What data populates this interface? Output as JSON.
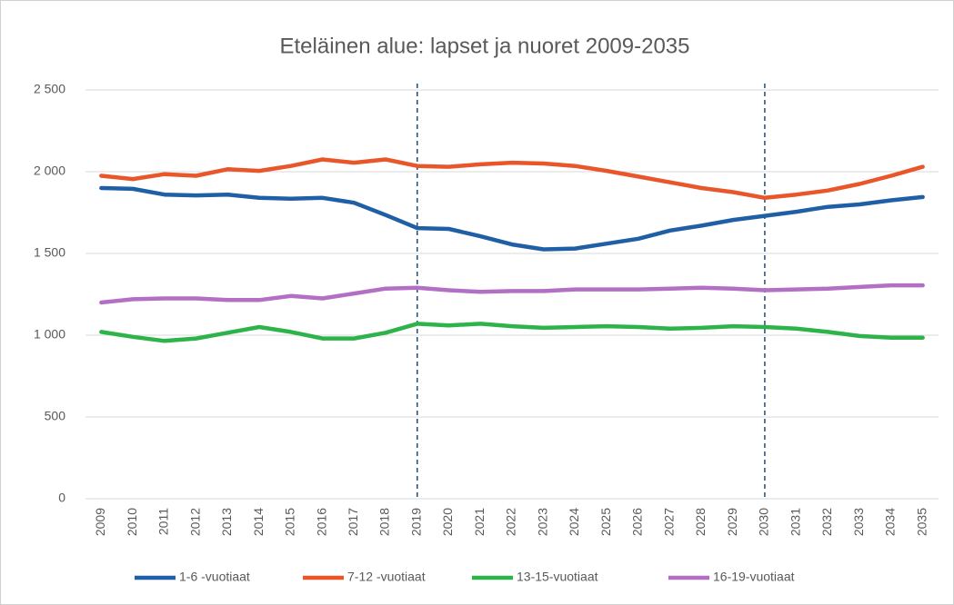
{
  "chart_data": {
    "type": "line",
    "title": "Eteläinen alue: lapset ja nuoret 2009-2035",
    "categories": [
      "2009",
      "2010",
      "2011",
      "2012",
      "2013",
      "2014",
      "2015",
      "2016",
      "2017",
      "2018",
      "2019",
      "2020",
      "2021",
      "2022",
      "2023",
      "2024",
      "2025",
      "2026",
      "2027",
      "2028",
      "2029",
      "2030",
      "2031",
      "2032",
      "2033",
      "2034",
      "2035"
    ],
    "series": [
      {
        "name": "1-6 -vuotiaat",
        "color": "#1f5fa6",
        "values": [
          1900,
          1895,
          1860,
          1855,
          1860,
          1840,
          1835,
          1840,
          1810,
          1735,
          1655,
          1650,
          1605,
          1555,
          1525,
          1530,
          1560,
          1590,
          1640,
          1670,
          1705,
          1730,
          1755,
          1785,
          1800,
          1825,
          1845
        ]
      },
      {
        "name": "7-12 -vuotiaat",
        "color": "#e8562a",
        "values": [
          1975,
          1955,
          1985,
          1975,
          2015,
          2005,
          2035,
          2075,
          2055,
          2075,
          2035,
          2030,
          2045,
          2055,
          2050,
          2035,
          2005,
          1970,
          1935,
          1900,
          1875,
          1840,
          1860,
          1885,
          1925,
          1975,
          2030
        ]
      },
      {
        "name": "13-15-vuotiaat",
        "color": "#2db34a",
        "values": [
          1020,
          990,
          965,
          980,
          1015,
          1050,
          1020,
          980,
          980,
          1015,
          1070,
          1060,
          1070,
          1055,
          1045,
          1050,
          1055,
          1050,
          1040,
          1045,
          1055,
          1050,
          1040,
          1020,
          995,
          985,
          985
        ]
      },
      {
        "name": "16-19-vuotiaat",
        "color": "#b36fc4",
        "values": [
          1200,
          1220,
          1225,
          1225,
          1215,
          1215,
          1240,
          1225,
          1255,
          1285,
          1290,
          1275,
          1265,
          1270,
          1270,
          1280,
          1280,
          1280,
          1285,
          1290,
          1285,
          1275,
          1280,
          1285,
          1295,
          1305,
          1305
        ]
      }
    ],
    "ylim": [
      0,
      2500
    ],
    "yticks": [
      0,
      500,
      {
        "value": 1000,
        "label": "1 000"
      },
      {
        "value": 1500,
        "label": "1 500"
      },
      {
        "value": 2000,
        "label": "2 000"
      },
      {
        "value": 2500,
        "label": "2 500"
      }
    ],
    "grid": true,
    "reference_lines": [
      "2019",
      "2030"
    ],
    "legend": "bottom"
  }
}
